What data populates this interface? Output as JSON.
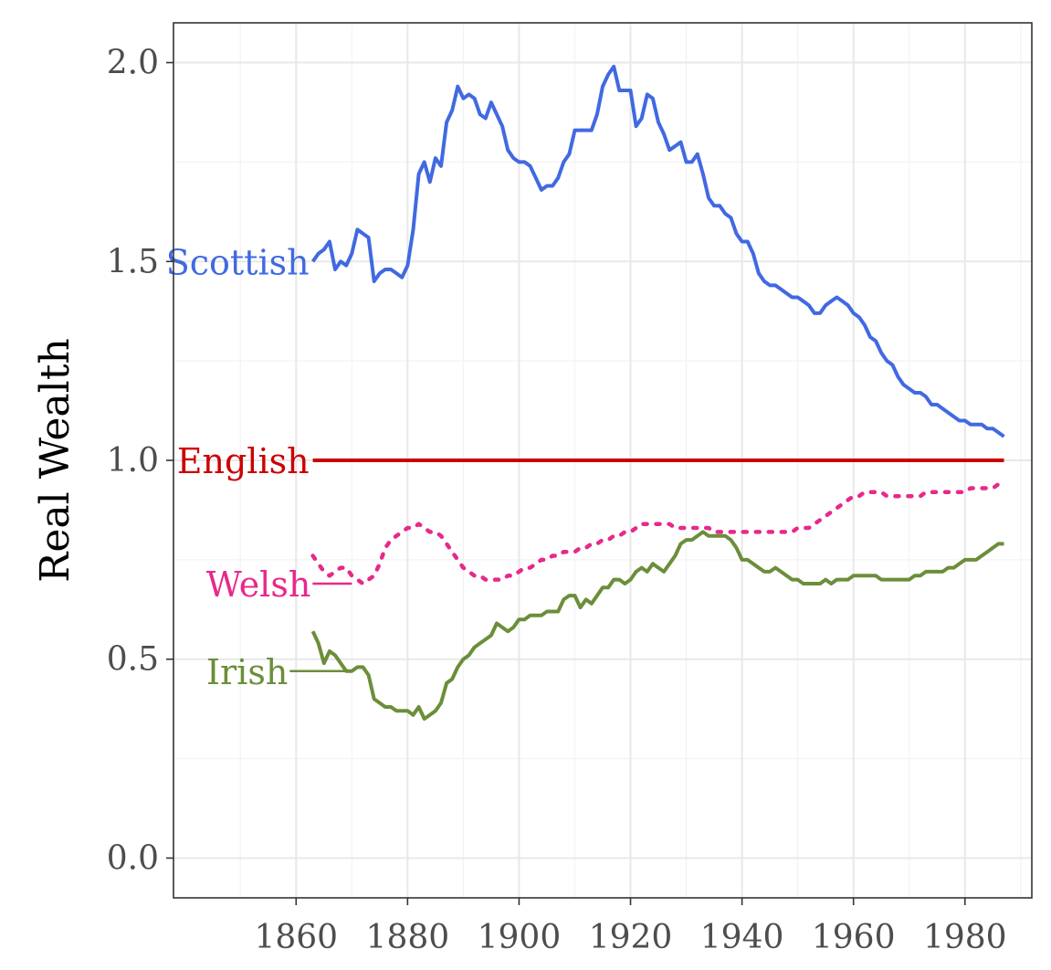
{
  "chart_data": {
    "type": "line",
    "title": "",
    "xlabel": "",
    "ylabel": "Real Wealth",
    "xlim": [
      1838,
      1992
    ],
    "ylim": [
      -0.1,
      2.1
    ],
    "x_ticks": [
      1860,
      1880,
      1900,
      1920,
      1940,
      1960,
      1980
    ],
    "x_tick_labels": [
      "1860",
      "1880",
      "1900",
      "1920",
      "1940",
      "1960",
      "1980"
    ],
    "y_ticks": [
      0.0,
      0.5,
      1.0,
      1.5,
      2.0
    ],
    "y_tick_labels": [
      "0.0",
      "0.5",
      "1.0",
      "1.5",
      "2.0"
    ],
    "grid": true,
    "legend": "direct-labels",
    "series": [
      {
        "name": "Scottish",
        "color": "#4169E1",
        "dash": "solid",
        "label_anchor": [
          1863,
          1.5
        ],
        "x": [
          1863,
          1864,
          1865,
          1866,
          1867,
          1868,
          1869,
          1870,
          1871,
          1872,
          1873,
          1874,
          1875,
          1876,
          1877,
          1878,
          1879,
          1880,
          1881,
          1882,
          1883,
          1884,
          1885,
          1886,
          1887,
          1888,
          1889,
          1890,
          1891,
          1892,
          1893,
          1894,
          1895,
          1896,
          1897,
          1898,
          1899,
          1900,
          1901,
          1902,
          1903,
          1904,
          1905,
          1906,
          1907,
          1908,
          1909,
          1910,
          1911,
          1912,
          1913,
          1914,
          1915,
          1916,
          1917,
          1918,
          1919,
          1920,
          1921,
          1922,
          1923,
          1924,
          1925,
          1926,
          1927,
          1928,
          1929,
          1930,
          1931,
          1932,
          1933,
          1934,
          1935,
          1936,
          1937,
          1938,
          1939,
          1940,
          1941,
          1942,
          1943,
          1944,
          1945,
          1946,
          1947,
          1948,
          1949,
          1950,
          1951,
          1952,
          1953,
          1954,
          1955,
          1956,
          1957,
          1958,
          1959,
          1960,
          1961,
          1962,
          1963,
          1964,
          1965,
          1966,
          1967,
          1968,
          1969,
          1970,
          1971,
          1972,
          1973,
          1974,
          1975,
          1976,
          1977,
          1978,
          1979,
          1980,
          1981,
          1982,
          1983,
          1984,
          1985,
          1986,
          1987
        ],
        "values": [
          1.5,
          1.52,
          1.53,
          1.55,
          1.48,
          1.5,
          1.49,
          1.52,
          1.58,
          1.57,
          1.56,
          1.45,
          1.47,
          1.48,
          1.48,
          1.47,
          1.46,
          1.49,
          1.58,
          1.72,
          1.75,
          1.7,
          1.76,
          1.74,
          1.85,
          1.88,
          1.94,
          1.91,
          1.92,
          1.91,
          1.87,
          1.86,
          1.9,
          1.87,
          1.84,
          1.78,
          1.76,
          1.75,
          1.75,
          1.74,
          1.71,
          1.68,
          1.69,
          1.69,
          1.71,
          1.75,
          1.77,
          1.83,
          1.83,
          1.83,
          1.83,
          1.87,
          1.94,
          1.97,
          1.99,
          1.93,
          1.93,
          1.93,
          1.84,
          1.86,
          1.92,
          1.91,
          1.85,
          1.82,
          1.78,
          1.79,
          1.8,
          1.75,
          1.75,
          1.77,
          1.72,
          1.66,
          1.64,
          1.64,
          1.62,
          1.61,
          1.57,
          1.55,
          1.55,
          1.52,
          1.47,
          1.45,
          1.44,
          1.44,
          1.43,
          1.42,
          1.41,
          1.41,
          1.4,
          1.39,
          1.37,
          1.37,
          1.39,
          1.4,
          1.41,
          1.4,
          1.39,
          1.37,
          1.36,
          1.34,
          1.31,
          1.3,
          1.27,
          1.25,
          1.24,
          1.21,
          1.19,
          1.18,
          1.17,
          1.17,
          1.16,
          1.14,
          1.14,
          1.13,
          1.12,
          1.11,
          1.1,
          1.1,
          1.09,
          1.09,
          1.09,
          1.08,
          1.08,
          1.07,
          1.06
        ]
      },
      {
        "name": "English",
        "color": "#CC0000",
        "dash": "solid",
        "label_anchor": [
          1863,
          1.0
        ],
        "x": [
          1863,
          1987
        ],
        "values": [
          1.0,
          1.0
        ]
      },
      {
        "name": "Welsh",
        "color": "#E7298A",
        "dash": "dotted",
        "label_anchor": [
          1870,
          0.69
        ],
        "x": [
          1863,
          1864,
          1865,
          1866,
          1867,
          1868,
          1869,
          1870,
          1871,
          1872,
          1873,
          1874,
          1875,
          1876,
          1877,
          1878,
          1879,
          1880,
          1881,
          1882,
          1883,
          1884,
          1885,
          1886,
          1887,
          1888,
          1889,
          1890,
          1891,
          1892,
          1893,
          1894,
          1895,
          1896,
          1897,
          1898,
          1899,
          1900,
          1901,
          1902,
          1903,
          1904,
          1905,
          1906,
          1907,
          1908,
          1909,
          1910,
          1911,
          1912,
          1913,
          1914,
          1915,
          1916,
          1917,
          1918,
          1919,
          1920,
          1921,
          1922,
          1923,
          1924,
          1925,
          1926,
          1927,
          1928,
          1929,
          1930,
          1931,
          1932,
          1933,
          1934,
          1935,
          1936,
          1937,
          1938,
          1939,
          1940,
          1941,
          1942,
          1943,
          1944,
          1945,
          1946,
          1947,
          1948,
          1949,
          1950,
          1951,
          1952,
          1953,
          1954,
          1955,
          1956,
          1957,
          1958,
          1959,
          1960,
          1961,
          1962,
          1963,
          1964,
          1965,
          1966,
          1967,
          1968,
          1969,
          1970,
          1971,
          1972,
          1973,
          1974,
          1975,
          1976,
          1977,
          1978,
          1979,
          1980,
          1981,
          1982,
          1983,
          1984,
          1985,
          1986,
          1987
        ],
        "values": [
          0.76,
          0.74,
          0.72,
          0.71,
          0.72,
          0.73,
          0.73,
          0.71,
          0.7,
          0.69,
          0.7,
          0.71,
          0.74,
          0.78,
          0.8,
          0.81,
          0.82,
          0.83,
          0.83,
          0.84,
          0.83,
          0.82,
          0.82,
          0.81,
          0.79,
          0.77,
          0.75,
          0.73,
          0.72,
          0.71,
          0.71,
          0.7,
          0.7,
          0.7,
          0.7,
          0.71,
          0.71,
          0.72,
          0.73,
          0.73,
          0.74,
          0.75,
          0.75,
          0.76,
          0.76,
          0.77,
          0.77,
          0.77,
          0.78,
          0.78,
          0.79,
          0.79,
          0.8,
          0.8,
          0.81,
          0.81,
          0.82,
          0.82,
          0.83,
          0.84,
          0.84,
          0.84,
          0.84,
          0.84,
          0.84,
          0.83,
          0.83,
          0.83,
          0.83,
          0.83,
          0.83,
          0.83,
          0.82,
          0.82,
          0.82,
          0.82,
          0.82,
          0.82,
          0.82,
          0.82,
          0.82,
          0.82,
          0.82,
          0.82,
          0.82,
          0.82,
          0.82,
          0.83,
          0.83,
          0.83,
          0.84,
          0.85,
          0.86,
          0.87,
          0.88,
          0.89,
          0.9,
          0.91,
          0.91,
          0.92,
          0.92,
          0.92,
          0.92,
          0.91,
          0.91,
          0.91,
          0.91,
          0.91,
          0.91,
          0.91,
          0.92,
          0.92,
          0.92,
          0.92,
          0.92,
          0.92,
          0.92,
          0.92,
          0.93,
          0.93,
          0.93,
          0.93,
          0.93,
          0.94,
          0.94
        ]
      },
      {
        "name": "Irish",
        "color": "#6B8E3A",
        "dash": "solid",
        "label_anchor": [
          1870,
          0.47
        ],
        "x": [
          1863,
          1864,
          1865,
          1866,
          1867,
          1868,
          1869,
          1870,
          1871,
          1872,
          1873,
          1874,
          1875,
          1876,
          1877,
          1878,
          1879,
          1880,
          1881,
          1882,
          1883,
          1884,
          1885,
          1886,
          1887,
          1888,
          1889,
          1890,
          1891,
          1892,
          1893,
          1894,
          1895,
          1896,
          1897,
          1898,
          1899,
          1900,
          1901,
          1902,
          1903,
          1904,
          1905,
          1906,
          1907,
          1908,
          1909,
          1910,
          1911,
          1912,
          1913,
          1914,
          1915,
          1916,
          1917,
          1918,
          1919,
          1920,
          1921,
          1922,
          1923,
          1924,
          1925,
          1926,
          1927,
          1928,
          1929,
          1930,
          1931,
          1932,
          1933,
          1934,
          1935,
          1936,
          1937,
          1938,
          1939,
          1940,
          1941,
          1942,
          1943,
          1944,
          1945,
          1946,
          1947,
          1948,
          1949,
          1950,
          1951,
          1952,
          1953,
          1954,
          1955,
          1956,
          1957,
          1958,
          1959,
          1960,
          1961,
          1962,
          1963,
          1964,
          1965,
          1966,
          1967,
          1968,
          1969,
          1970,
          1971,
          1972,
          1973,
          1974,
          1975,
          1976,
          1977,
          1978,
          1979,
          1980,
          1981,
          1982,
          1983,
          1984,
          1985,
          1986,
          1987
        ],
        "values": [
          0.57,
          0.54,
          0.49,
          0.52,
          0.51,
          0.49,
          0.47,
          0.47,
          0.48,
          0.48,
          0.46,
          0.4,
          0.39,
          0.38,
          0.38,
          0.37,
          0.37,
          0.37,
          0.36,
          0.38,
          0.35,
          0.36,
          0.37,
          0.39,
          0.44,
          0.45,
          0.48,
          0.5,
          0.51,
          0.53,
          0.54,
          0.55,
          0.56,
          0.59,
          0.58,
          0.57,
          0.58,
          0.6,
          0.6,
          0.61,
          0.61,
          0.61,
          0.62,
          0.62,
          0.62,
          0.65,
          0.66,
          0.66,
          0.63,
          0.65,
          0.64,
          0.66,
          0.68,
          0.68,
          0.7,
          0.7,
          0.69,
          0.7,
          0.72,
          0.73,
          0.72,
          0.74,
          0.73,
          0.72,
          0.74,
          0.76,
          0.79,
          0.8,
          0.8,
          0.81,
          0.82,
          0.81,
          0.81,
          0.81,
          0.81,
          0.8,
          0.78,
          0.75,
          0.75,
          0.74,
          0.73,
          0.72,
          0.72,
          0.73,
          0.72,
          0.71,
          0.7,
          0.7,
          0.69,
          0.69,
          0.69,
          0.69,
          0.7,
          0.69,
          0.7,
          0.7,
          0.7,
          0.71,
          0.71,
          0.71,
          0.71,
          0.71,
          0.7,
          0.7,
          0.7,
          0.7,
          0.7,
          0.7,
          0.71,
          0.71,
          0.72,
          0.72,
          0.72,
          0.72,
          0.73,
          0.73,
          0.74,
          0.75,
          0.75,
          0.75,
          0.76,
          0.77,
          0.78,
          0.79,
          0.79
        ]
      }
    ]
  }
}
